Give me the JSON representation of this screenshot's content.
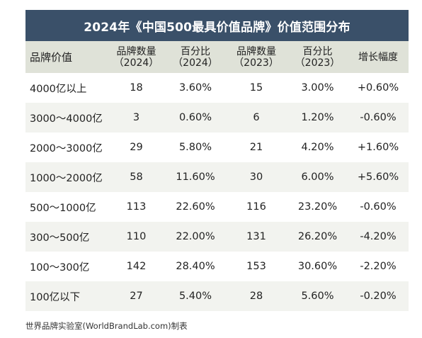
{
  "title": "2024年《中国500最具价值品牌》价值范围分布",
  "headers": [
    {
      "line1": "品牌价值",
      "line2": ""
    },
    {
      "line1": "品牌数量",
      "line2": "（2024）"
    },
    {
      "line1": "百分比",
      "line2": "（2024）"
    },
    {
      "line1": "品牌数量",
      "line2": "（2023）"
    },
    {
      "line1": "百分比",
      "line2": "（2023）"
    },
    {
      "line1": "增长幅度",
      "line2": ""
    }
  ],
  "rows": [
    [
      "4000亿以上",
      "18",
      "3.60%",
      "15",
      "3.00%",
      "+0.60%"
    ],
    [
      "3000～4000亿",
      "3",
      "0.60%",
      "6",
      "1.20%",
      "-0.60%"
    ],
    [
      "2000～3000亿",
      "29",
      "5.80%",
      "21",
      "4.20%",
      "+1.60%"
    ],
    [
      "1000～2000亿",
      "58",
      "11.60%",
      "30",
      "6.00%",
      "+5.60%"
    ],
    [
      "500～1000亿",
      "113",
      "22.60%",
      "116",
      "23.20%",
      "-0.60%"
    ],
    [
      "300～500亿",
      "110",
      "22.00%",
      "131",
      "26.20%",
      "-4.20%"
    ],
    [
      "100～300亿",
      "142",
      "28.40%",
      "153",
      "30.60%",
      "-2.20%"
    ],
    [
      "100亿以下",
      "27",
      "5.40%",
      "28",
      "5.60%",
      "-0.20%"
    ]
  ],
  "source": "世界品牌实验室(WorldBrandLab.com)制表",
  "colors": {
    "title_bg": "#3a5069",
    "header_bg": "#dfe2d8",
    "stripe_bg": "#f2f3ef"
  }
}
